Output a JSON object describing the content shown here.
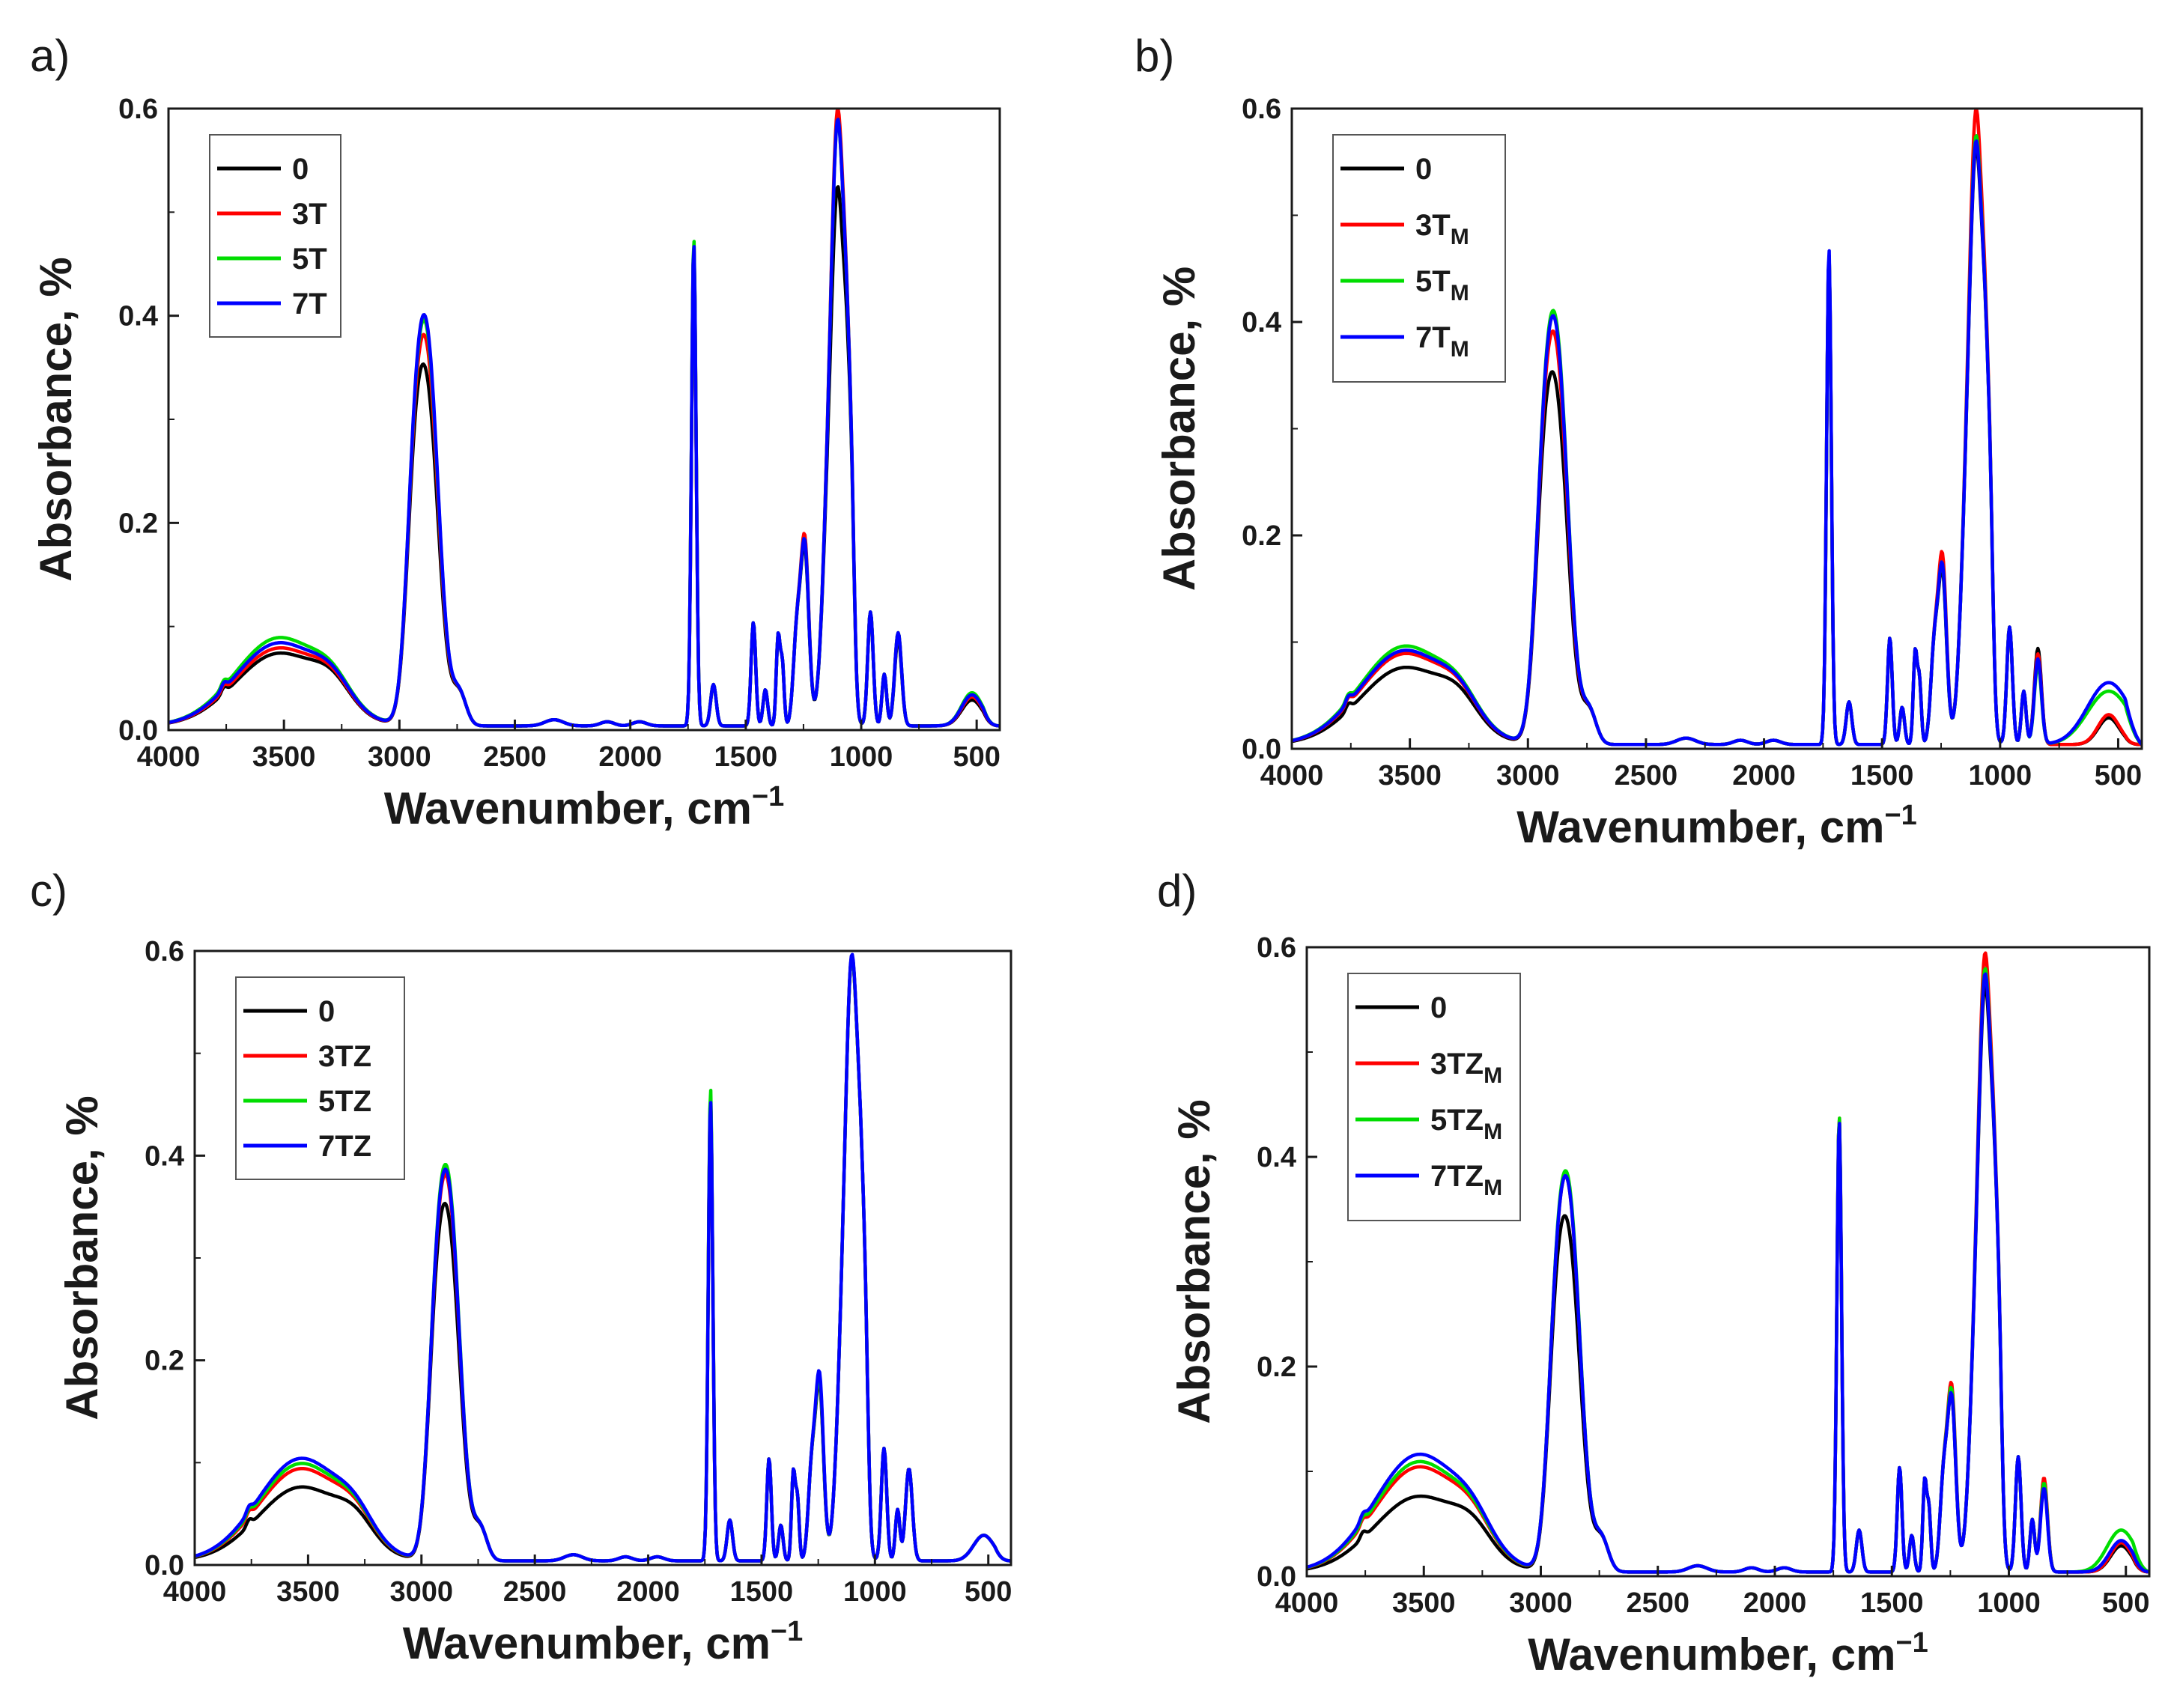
{
  "chart_data": [
    {
      "panel": "a)",
      "type": "line",
      "xlabel": "Wavenumber, cm",
      "xlabel_sup": "−1",
      "ylabel": "Absorbance, %",
      "xlim": [
        4000,
        400
      ],
      "ylim": [
        0,
        0.6
      ],
      "x_ticks": [
        "4000",
        "3500",
        "3000",
        "2500",
        "2000",
        "1500",
        "1000",
        "500"
      ],
      "y_ticks": [
        "0.0",
        "0.2",
        "0.4",
        "0.6"
      ],
      "legend_position": "top-left",
      "series": [
        {
          "name": "0",
          "sub": "",
          "color": "#000000",
          "peaks": [
            [
              3520,
              0.07,
              190
            ],
            [
              2880,
              0.31,
              50
            ],
            [
              1725,
              0.46,
              10
            ],
            [
              1100,
              0.5,
              30
            ],
            [
              1245,
              0.17,
              18
            ],
            [
              840,
              0.085,
              15
            ],
            [
              520,
              0.025,
              45
            ]
          ]
        },
        {
          "name": "3T",
          "sub": "",
          "color": "#ff0000",
          "peaks": [
            [
              3520,
              0.075,
              190
            ],
            [
              2880,
              0.34,
              50
            ],
            [
              1725,
              0.465,
              10
            ],
            [
              1100,
              0.575,
              30
            ],
            [
              1245,
              0.18,
              18
            ],
            [
              840,
              0.09,
              15
            ],
            [
              520,
              0.028,
              45
            ]
          ]
        },
        {
          "name": "5T",
          "sub": "",
          "color": "#00dd00",
          "peaks": [
            [
              3520,
              0.085,
              190
            ],
            [
              2880,
              0.355,
              50
            ],
            [
              1725,
              0.47,
              10
            ],
            [
              1100,
              0.565,
              30
            ],
            [
              1245,
              0.175,
              18
            ],
            [
              840,
              0.09,
              15
            ],
            [
              520,
              0.032,
              45
            ]
          ]
        },
        {
          "name": "7T",
          "sub": "",
          "color": "#0000ff",
          "peaks": [
            [
              3520,
              0.08,
              190
            ],
            [
              2880,
              0.36,
              50
            ],
            [
              1725,
              0.465,
              10
            ],
            [
              1100,
              0.565,
              30
            ],
            [
              1245,
              0.175,
              18
            ],
            [
              840,
              0.09,
              15
            ],
            [
              520,
              0.03,
              45
            ]
          ]
        }
      ]
    },
    {
      "panel": "b)",
      "type": "line",
      "xlabel": "Wavenumber, cm",
      "xlabel_sup": "−1",
      "ylabel": "Absorbance, %",
      "xlim": [
        4000,
        400
      ],
      "ylim": [
        0,
        0.6
      ],
      "x_ticks": [
        "4000",
        "3500",
        "3000",
        "2500",
        "2000",
        "1500",
        "1000",
        "500"
      ],
      "y_ticks": [
        "0.0",
        "0.2",
        "0.4",
        "0.6"
      ],
      "legend_position": "top-left",
      "series": [
        {
          "name": "0",
          "sub": "",
          "color": "#000000",
          "peaks": [
            [
              3520,
              0.072,
              190
            ],
            [
              2880,
              0.31,
              50
            ],
            [
              1725,
              0.46,
              10
            ],
            [
              1100,
              0.54,
              30
            ],
            [
              1245,
              0.16,
              18
            ],
            [
              840,
              0.09,
              15
            ],
            [
              540,
              0.025,
              45
            ]
          ]
        },
        {
          "name": "3T",
          "sub": "M",
          "color": "#ff0000",
          "peaks": [
            [
              3520,
              0.085,
              190
            ],
            [
              2880,
              0.35,
              50
            ],
            [
              1725,
              0.46,
              10
            ],
            [
              1100,
              0.575,
              30
            ],
            [
              1245,
              0.175,
              18
            ],
            [
              840,
              0.085,
              15
            ],
            [
              540,
              0.028,
              45
            ]
          ]
        },
        {
          "name": "5T",
          "sub": "M",
          "color": "#00dd00",
          "peaks": [
            [
              3520,
              0.092,
              190
            ],
            [
              2880,
              0.37,
              50
            ],
            [
              1725,
              0.46,
              10
            ],
            [
              1100,
              0.55,
              30
            ],
            [
              1245,
              0.165,
              18
            ],
            [
              840,
              0.075,
              15
            ],
            [
              540,
              0.05,
              90
            ]
          ]
        },
        {
          "name": "7T",
          "sub": "M",
          "color": "#0000ff",
          "peaks": [
            [
              3520,
              0.088,
              190
            ],
            [
              2880,
              0.365,
              50
            ],
            [
              1725,
              0.465,
              10
            ],
            [
              1100,
              0.545,
              30
            ],
            [
              1245,
              0.165,
              18
            ],
            [
              840,
              0.08,
              15
            ],
            [
              540,
              0.058,
              90
            ]
          ]
        }
      ]
    },
    {
      "panel": "c)",
      "type": "line",
      "xlabel": "Wavenumber, cm",
      "xlabel_sup": "−1",
      "ylabel": "Absorbance, %",
      "xlim": [
        4000,
        400
      ],
      "ylim": [
        0,
        0.6
      ],
      "x_ticks": [
        "4000",
        "3500",
        "3000",
        "2500",
        "2000",
        "1500",
        "1000",
        "500"
      ],
      "y_ticks": [
        "0.0",
        "0.2",
        "0.4",
        "0.6"
      ],
      "legend_position": "top-left",
      "series": [
        {
          "name": "0",
          "sub": "",
          "color": "#000000",
          "peaks": [
            [
              3530,
              0.072,
              190
            ],
            [
              2880,
              0.31,
              50
            ],
            [
              1725,
              0.45,
              10
            ],
            [
              1100,
              0.57,
              30
            ],
            [
              1245,
              0.17,
              18
            ],
            [
              850,
              0.09,
              15
            ],
            [
              520,
              0.025,
              45
            ]
          ]
        },
        {
          "name": "3TZ",
          "sub": "",
          "color": "#ff0000",
          "peaks": [
            [
              3530,
              0.09,
              190
            ],
            [
              2880,
              0.34,
              50
            ],
            [
              1725,
              0.455,
              10
            ],
            [
              1100,
              0.57,
              30
            ],
            [
              1245,
              0.175,
              18
            ],
            [
              850,
              0.09,
              15
            ],
            [
              520,
              0.025,
              45
            ]
          ]
        },
        {
          "name": "5TZ",
          "sub": "",
          "color": "#00dd00",
          "peaks": [
            [
              3530,
              0.095,
              190
            ],
            [
              2880,
              0.35,
              50
            ],
            [
              1725,
              0.462,
              10
            ],
            [
              1100,
              0.57,
              30
            ],
            [
              1245,
              0.175,
              18
            ],
            [
              850,
              0.09,
              15
            ],
            [
              520,
              0.025,
              45
            ]
          ]
        },
        {
          "name": "7TZ",
          "sub": "",
          "color": "#0000ff",
          "peaks": [
            [
              3530,
              0.1,
              190
            ],
            [
              2880,
              0.345,
              50
            ],
            [
              1725,
              0.45,
              10
            ],
            [
              1100,
              0.572,
              30
            ],
            [
              1245,
              0.18,
              18
            ],
            [
              850,
              0.09,
              15
            ],
            [
              520,
              0.025,
              45
            ]
          ]
        }
      ]
    },
    {
      "panel": "d)",
      "type": "line",
      "xlabel": "Wavenumber, cm",
      "xlabel_sup": "−1",
      "ylabel": "Absorbance, %",
      "xlim": [
        4000,
        400
      ],
      "ylim": [
        0,
        0.6
      ],
      "x_ticks": [
        "4000",
        "3500",
        "3000",
        "2500",
        "2000",
        "1500",
        "1000",
        "500"
      ],
      "y_ticks": [
        "0.0",
        "0.2",
        "0.4",
        "0.6"
      ],
      "legend_position": "top-left",
      "series": [
        {
          "name": "0",
          "sub": "",
          "color": "#000000",
          "peaks": [
            [
              3520,
              0.072,
              190
            ],
            [
              2880,
              0.3,
              50
            ],
            [
              1725,
              0.43,
              10
            ],
            [
              1100,
              0.54,
              30
            ],
            [
              1245,
              0.165,
              18
            ],
            [
              850,
              0.085,
              15
            ],
            [
              520,
              0.025,
              45
            ]
          ]
        },
        {
          "name": "3TZ",
          "sub": "M",
          "color": "#ff0000",
          "peaks": [
            [
              3520,
              0.1,
              190
            ],
            [
              2880,
              0.34,
              50
            ],
            [
              1725,
              0.435,
              10
            ],
            [
              1100,
              0.57,
              30
            ],
            [
              1245,
              0.175,
              18
            ],
            [
              850,
              0.09,
              15
            ],
            [
              520,
              0.028,
              45
            ]
          ]
        },
        {
          "name": "5TZ",
          "sub": "M",
          "color": "#00dd00",
          "peaks": [
            [
              3520,
              0.105,
              190
            ],
            [
              2880,
              0.345,
              50
            ],
            [
              1725,
              0.435,
              10
            ],
            [
              1100,
              0.555,
              30
            ],
            [
              1245,
              0.17,
              18
            ],
            [
              850,
              0.085,
              15
            ],
            [
              520,
              0.04,
              60
            ]
          ]
        },
        {
          "name": "7TZ",
          "sub": "M",
          "color": "#0000ff",
          "peaks": [
            [
              3520,
              0.112,
              190
            ],
            [
              2880,
              0.34,
              50
            ],
            [
              1725,
              0.43,
              10
            ],
            [
              1100,
              0.55,
              30
            ],
            [
              1245,
              0.165,
              18
            ],
            [
              850,
              0.08,
              15
            ],
            [
              520,
              0.03,
              50
            ]
          ]
        }
      ]
    }
  ]
}
